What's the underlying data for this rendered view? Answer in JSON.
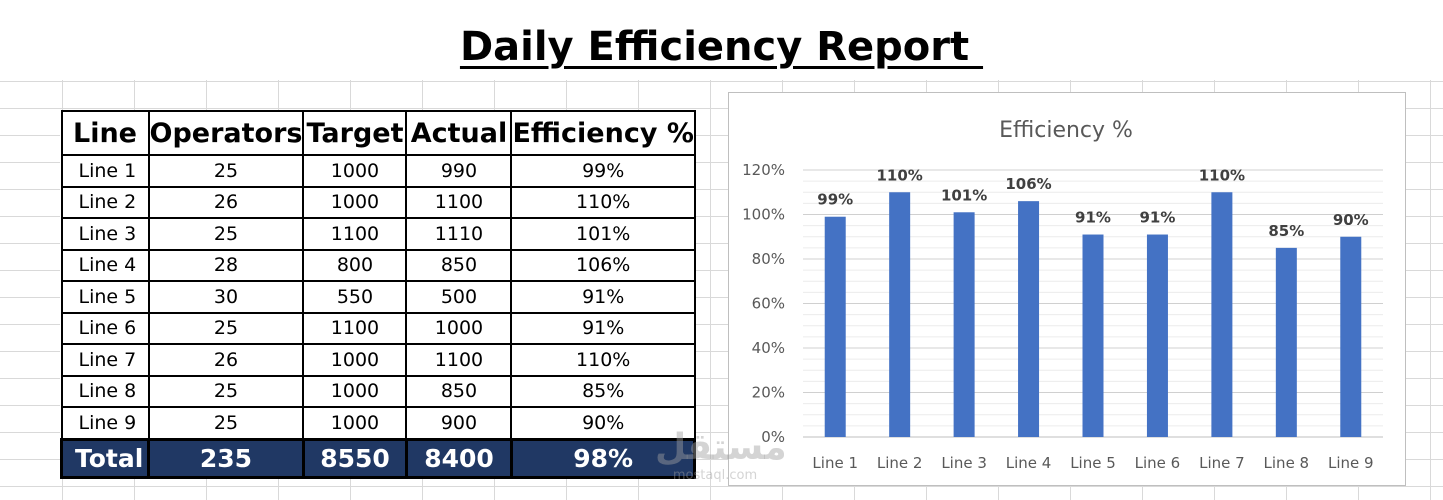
{
  "report": {
    "title": "Daily Efficiency Report "
  },
  "table": {
    "headers": [
      "Line",
      "Operators",
      "Target",
      "Actual",
      "Efficiency %"
    ],
    "rows": [
      [
        "Line 1",
        "25",
        "1000",
        "990",
        "99%"
      ],
      [
        "Line 2",
        "26",
        "1000",
        "1100",
        "110%"
      ],
      [
        "Line 3",
        "25",
        "1100",
        "1110",
        "101%"
      ],
      [
        "Line 4",
        "28",
        "800",
        "850",
        "106%"
      ],
      [
        "Line 5",
        "30",
        "550",
        "500",
        "91%"
      ],
      [
        "Line 6",
        "25",
        "1100",
        "1000",
        "91%"
      ],
      [
        "Line 7",
        "26",
        "1000",
        "1100",
        "110%"
      ],
      [
        "Line 8",
        "25",
        "1000",
        "850",
        "85%"
      ],
      [
        "Line 9",
        "25",
        "1000",
        "900",
        "90%"
      ]
    ],
    "total": [
      "Total",
      "235",
      "8550",
      "8400",
      "98%"
    ]
  },
  "chart_data": {
    "type": "bar",
    "title": "Efficiency %",
    "categories": [
      "Line 1",
      "Line 2",
      "Line 3",
      "Line 4",
      "Line 5",
      "Line 6",
      "Line 7",
      "Line 8",
      "Line 9"
    ],
    "values": [
      99,
      110,
      101,
      106,
      91,
      91,
      110,
      85,
      90
    ],
    "data_labels": [
      "99%",
      "110%",
      "101%",
      "106%",
      "91%",
      "91%",
      "110%",
      "85%",
      "90%"
    ],
    "yticks": [
      "0%",
      "20%",
      "40%",
      "60%",
      "80%",
      "100%",
      "120%"
    ],
    "ylim": [
      0,
      120
    ],
    "grid": true,
    "legend": "none",
    "bar_color": "#4472c4"
  },
  "watermark": {
    "logo": "مستقل",
    "text": "mostaql.com"
  }
}
